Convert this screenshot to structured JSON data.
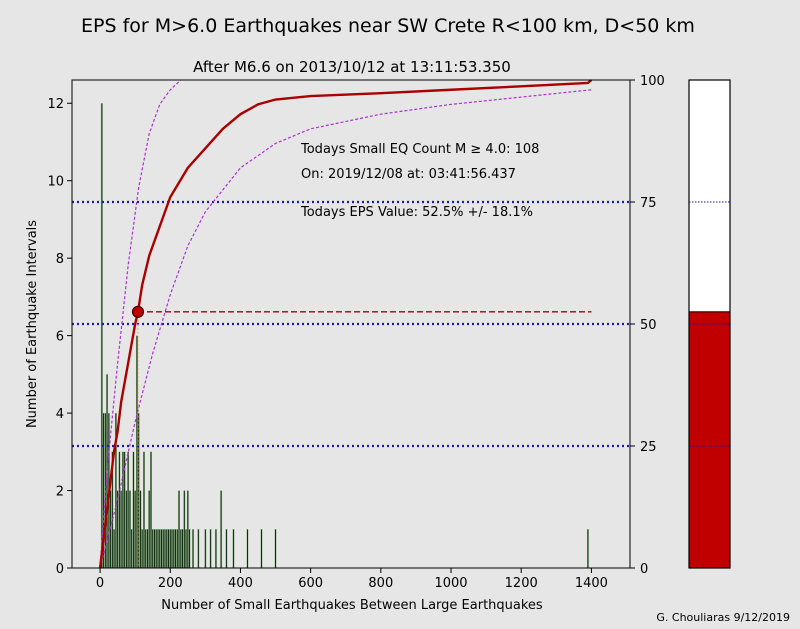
{
  "chart_data": {
    "type": "bar",
    "title": "EPS for M>6.0 Earthquakes near SW Crete R<100 km, D<50 km",
    "subtitle": "After M6.6 on 2013/10/12 at 13:11:53.350",
    "xlabel": "Number of Small Earthquakes Between Large Earthquakes",
    "ylabel": "Number of Earthquake Intervals",
    "xlim": [
      -80,
      1510
    ],
    "ylim": [
      0,
      12.6
    ],
    "xticks": [
      "0",
      "200",
      "400",
      "600",
      "800",
      "1000",
      "1200",
      "1400"
    ],
    "yticks": [
      "0",
      "2",
      "4",
      "6",
      "8",
      "10",
      "12"
    ],
    "y2lim": [
      0,
      100
    ],
    "y2ticks": [
      "0",
      "25",
      "50",
      "75",
      "100"
    ],
    "bar_color": "#0f2d10",
    "bars": {
      "x": [
        5,
        10,
        15,
        20,
        25,
        30,
        35,
        40,
        45,
        50,
        55,
        60,
        65,
        70,
        75,
        80,
        85,
        90,
        95,
        100,
        105,
        110,
        115,
        120,
        125,
        130,
        135,
        140,
        145,
        150,
        155,
        160,
        165,
        170,
        175,
        180,
        185,
        190,
        195,
        200,
        205,
        210,
        215,
        220,
        225,
        230,
        235,
        240,
        245,
        250,
        255,
        265,
        280,
        300,
        315,
        330,
        345,
        360,
        380,
        420,
        460,
        500,
        1390
      ],
      "values": [
        12,
        4,
        4,
        5,
        4,
        2,
        3,
        1,
        4,
        2,
        3,
        2,
        3,
        3,
        2,
        3,
        2,
        1,
        3,
        2,
        6,
        4,
        2,
        1,
        3,
        1,
        1,
        2,
        3,
        1,
        1,
        1,
        1,
        1,
        1,
        1,
        1,
        1,
        1,
        1,
        1,
        1,
        1,
        1,
        2,
        1,
        1,
        2,
        1,
        2,
        1,
        1,
        1,
        1,
        1,
        1,
        2,
        1,
        1,
        1,
        1,
        1,
        1
      ]
    },
    "cdf": {
      "name": "Cumulative distribution",
      "color": "#aa0000",
      "x": [
        0,
        10,
        20,
        30,
        40,
        50,
        60,
        70,
        80,
        90,
        100,
        108,
        120,
        140,
        160,
        180,
        200,
        250,
        300,
        350,
        400,
        450,
        500,
        600,
        800,
        1000,
        1200,
        1390,
        1400
      ],
      "y": [
        0,
        6,
        12,
        18,
        24,
        28,
        34,
        38,
        42,
        46,
        50,
        52.5,
        58,
        64,
        68,
        72,
        76,
        82,
        86,
        90,
        93,
        95,
        96,
        96.7,
        97.3,
        98,
        98.7,
        99.4,
        100
      ]
    },
    "upper_bound": {
      "color": "#aa33cc",
      "x": [
        0,
        20,
        50,
        80,
        110,
        140,
        170,
        200,
        230
      ],
      "y": [
        0,
        20,
        42,
        62,
        78,
        89,
        95,
        98,
        100
      ]
    },
    "lower_bound": {
      "color": "#aa33cc",
      "x": [
        0,
        50,
        100,
        150,
        200,
        250,
        300,
        400,
        500,
        600,
        800,
        1000,
        1200,
        1400
      ],
      "y": [
        0,
        14,
        30,
        44,
        56,
        66,
        73,
        82,
        87,
        90,
        93,
        95,
        96.5,
        98
      ]
    },
    "reference_lines_percent": [
      25,
      50,
      75
    ],
    "current_point": {
      "x": 108,
      "percent": 52.5
    },
    "annotations": {
      "count_line": "Todays Small EQ Count M ≥ 4.0:  108",
      "date_line": "On:  2019/12/08   at:  03:41:56.437",
      "eps_line": "Todays EPS Value:  52.5% +/- 18.1%"
    },
    "gauge": {
      "value_percent": 52.5,
      "fill_color": "#c00000",
      "ref_lines": [
        25,
        50,
        75
      ]
    },
    "credit": "G. Chouliaras 9/12/2019"
  }
}
